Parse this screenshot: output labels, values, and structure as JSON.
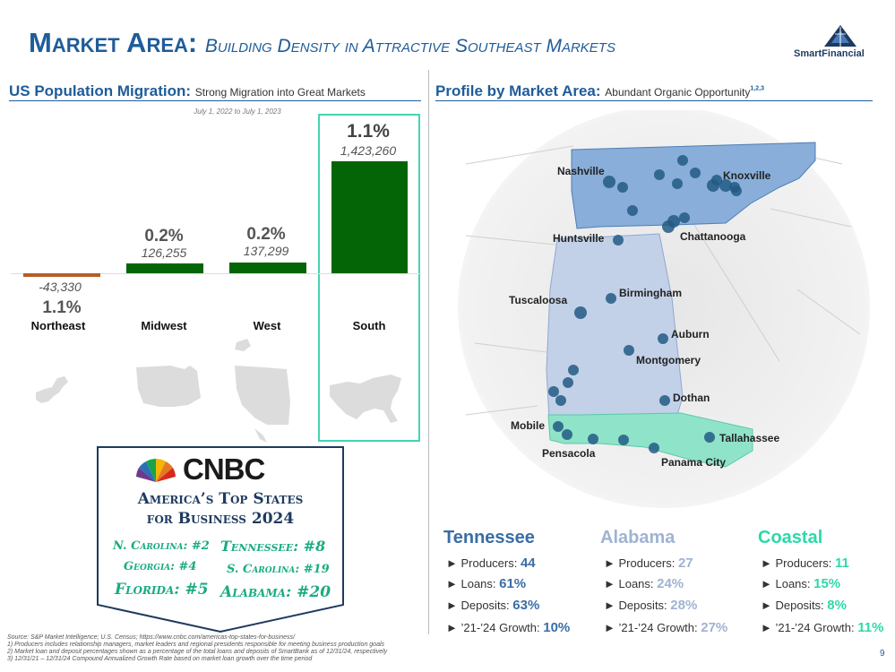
{
  "header": {
    "title_main": "Market Area:",
    "title_sub": "Building Density in Attractive Southeast Markets",
    "logo_text": "SmartFinancial"
  },
  "left_section": {
    "title": "US Population Migration:",
    "subtitle": "Strong Migration into Great Markets",
    "period": "July 1, 2022 to July 1, 2023"
  },
  "chart_data": {
    "type": "bar",
    "title": "US Population Migration",
    "categories": [
      "Northeast",
      "Midwest",
      "West",
      "South"
    ],
    "values": [
      -43330,
      126255,
      137299,
      1423260
    ],
    "value_labels": [
      "-43,330",
      "126,255",
      "137,299",
      "1,423,260"
    ],
    "pct_labels": [
      "1.1%",
      "0.2%",
      "0.2%",
      "1.1%"
    ],
    "ylim": [
      -100000,
      1500000
    ],
    "colors": {
      "positive": "#046507",
      "negative": "#b85c26"
    }
  },
  "cnbc": {
    "brand": "CNBC",
    "heading_line1": "America’s Top States",
    "heading_line2": "for Business 2024",
    "ranks": [
      {
        "label": "N. Carolina: #2"
      },
      {
        "label": "Tennessee: #8"
      },
      {
        "label": "Georgia: #4"
      },
      {
        "label": "S. Carolina: #19"
      },
      {
        "label": "Florida: #5"
      },
      {
        "label": "Alabama: #20"
      }
    ]
  },
  "right_section": {
    "title": "Profile by Market Area:",
    "subtitle": "Abundant Organic Opportunity",
    "superscript": "1,2,3"
  },
  "map": {
    "cities": [
      "Nashville",
      "Knoxville",
      "Huntsville",
      "Chattanooga",
      "Tuscaloosa",
      "Birmingham",
      "Auburn",
      "Montgomery",
      "Dothan",
      "Mobile",
      "Pensacola",
      "Tallahassee",
      "Panama City"
    ]
  },
  "markets": [
    {
      "name": "Tennessee",
      "producers": "44",
      "loans": "61%",
      "deposits": "63%",
      "growth": "10%",
      "color": "#3a6da6"
    },
    {
      "name": "Alabama",
      "producers": "27",
      "loans": "24%",
      "deposits": "28%",
      "growth": "27%",
      "color": "#9fb3d3"
    },
    {
      "name": "Coastal",
      "producers": "11",
      "loans": "15%",
      "deposits": "8%",
      "growth": "11%",
      "color": "#2dd9a8"
    }
  ],
  "stat_labels": {
    "producers": "► Producers: ",
    "loans": "► Loans: ",
    "deposits": "► Deposits: ",
    "growth": "► ’21-’24 Growth: "
  },
  "footnotes": {
    "source": "Source: S&P Market Intelligence; U.S. Census; https://www.cnbc.com/americas-top-states-for-business/",
    "n1": "1)      Producers includes relationship managers, market leaders and regional presidents responsible for meeting business production goals",
    "n2": "2)      Market loan and deposit percentages shown as a percentage of the total loans and deposits of SmartBank as of 12/31/24, respectively",
    "n3": "3)      12/31/21 – 12/31/24 Compound Annualized Growth Rate based on market loan growth over the time period"
  },
  "page_number": "9"
}
